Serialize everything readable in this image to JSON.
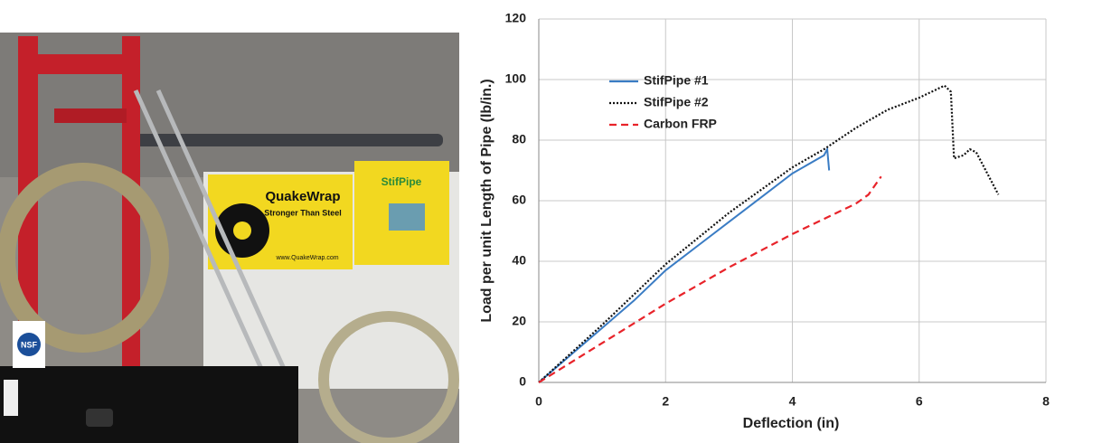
{
  "photo": {
    "banner_title": "QuakeWrap",
    "banner_slogan": "Stronger Than Steel",
    "banner_url": "www.QuakeWrap.com",
    "poster_title": "StifPipe",
    "badge": "NSF"
  },
  "chart_data": {
    "type": "line",
    "x_label": "Deflection (in)",
    "y_label": "Load per unit Length of Pipe  (lb/in.)",
    "xlim": [
      0,
      8
    ],
    "xticks": [
      0,
      2,
      4,
      6,
      8
    ],
    "ylim": [
      0,
      120
    ],
    "yticks": [
      0,
      20,
      40,
      60,
      80,
      100,
      120
    ],
    "grid": true,
    "legend": "upper-left",
    "series": [
      {
        "name": "StifPipe #1",
        "color": "#3a7cc4",
        "dash": "solid",
        "x": [
          0,
          0.5,
          1,
          1.5,
          2,
          2.5,
          3,
          3.5,
          4,
          4.5,
          4.55,
          4.58
        ],
        "values": [
          0,
          9,
          18,
          27,
          37,
          45,
          53,
          61,
          69,
          75,
          77,
          70
        ]
      },
      {
        "name": "StifPipe #2",
        "color": "#111111",
        "dash": "dotted",
        "x": [
          0,
          1,
          2,
          3,
          4,
          4.5,
          5,
          5.5,
          6,
          6.3,
          6.4,
          6.5,
          6.55,
          6.7,
          6.8,
          6.9,
          7.25
        ],
        "values": [
          0,
          19,
          39,
          56,
          71,
          77,
          84,
          90,
          94,
          97,
          98,
          96,
          74,
          75,
          77,
          76,
          62
        ]
      },
      {
        "name": "Carbon FRP",
        "color": "#e8232a",
        "dash": "dashed",
        "x": [
          0,
          1,
          2,
          3,
          4,
          4.5,
          5,
          5.2,
          5.3,
          5.4
        ],
        "values": [
          0,
          13,
          26,
          38,
          49,
          54,
          59,
          62,
          65,
          68
        ]
      }
    ]
  }
}
